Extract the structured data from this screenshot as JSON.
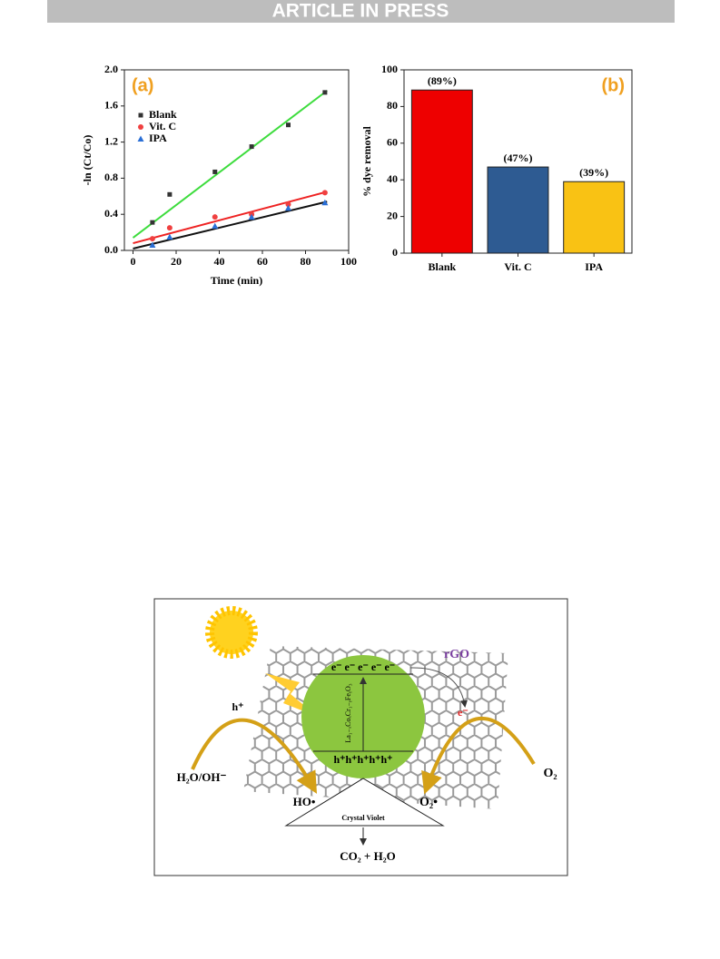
{
  "header": {
    "banner": "ARTICLE IN PRESS"
  },
  "chart_data": [
    {
      "type": "scatter",
      "label": "(a)",
      "label_color": "#f0a020",
      "x_label": "Time (min)",
      "y_label": "-ln (Ct/Co)",
      "xlim": [
        -4,
        100
      ],
      "xticks": [
        0,
        20,
        40,
        60,
        80,
        100
      ],
      "ylim": [
        0,
        2
      ],
      "yticks": [
        {
          "value": 0,
          "label": "0.0"
        },
        0.4,
        0.8,
        1.2,
        1.6,
        {
          "value": 2,
          "label": "2.0"
        }
      ],
      "legend": "upper left",
      "series": [
        {
          "name": "Blank",
          "color": "#333333",
          "marker": "square",
          "x": [
            9,
            17,
            38,
            55,
            72,
            89
          ],
          "values": [
            0.31,
            0.62,
            0.87,
            1.15,
            1.39,
            1.75
          ],
          "fit": {
            "color": "#3ddc3d",
            "x": [
              0,
              90
            ],
            "values": [
              0.14,
              1.77
            ]
          }
        },
        {
          "name": "Vit. C",
          "color": "#f04040",
          "marker": "circle",
          "x": [
            9,
            17,
            38,
            55,
            72,
            89
          ],
          "values": [
            0.13,
            0.25,
            0.37,
            0.4,
            0.51,
            0.64
          ],
          "fit": {
            "color": "#ee2222",
            "x": [
              0,
              90
            ],
            "values": [
              0.08,
              0.65
            ]
          }
        },
        {
          "name": "IPA",
          "color": "#2a6fd6",
          "marker": "triangle",
          "x": [
            9,
            17,
            38,
            55,
            72,
            89
          ],
          "values": [
            0.06,
            0.15,
            0.27,
            0.37,
            0.47,
            0.53
          ],
          "fit": {
            "color": "#111111",
            "x": [
              0,
              90
            ],
            "values": [
              0.02,
              0.54
            ]
          }
        }
      ]
    },
    {
      "type": "bar",
      "label": "(b)",
      "label_color": "#f0a020",
      "y_label": "% dye removal",
      "categories": [
        "Blank",
        "Vit. C",
        "IPA"
      ],
      "values": [
        89,
        47,
        39
      ],
      "value_labels": [
        "(89%)",
        "(47%)",
        "(39%)"
      ],
      "colors": [
        "#ee0000",
        "#2e5b92",
        "#f9c214"
      ],
      "ylim": [
        0,
        100
      ],
      "yticks": [
        0,
        20,
        40,
        60,
        80,
        100
      ]
    }
  ],
  "diagram": {
    "rgo": "rGO",
    "electrons": "e⁻ e⁻ e⁻ e⁻ e⁻",
    "holes": "h⁺h⁺h⁺h⁺h⁺",
    "catalyst": "La₁₋ₓCoₓCr₁₋ᵧFeᵧO₃",
    "hole_out": "h⁺",
    "electron_out": "e⁻",
    "water": "H₂O/OH⁻",
    "hydroxyl": "HO•",
    "superoxide": "O₂•",
    "oxygen": "O₂",
    "dye": "Crystal Violet",
    "products": "CO₂ + H₂O"
  }
}
